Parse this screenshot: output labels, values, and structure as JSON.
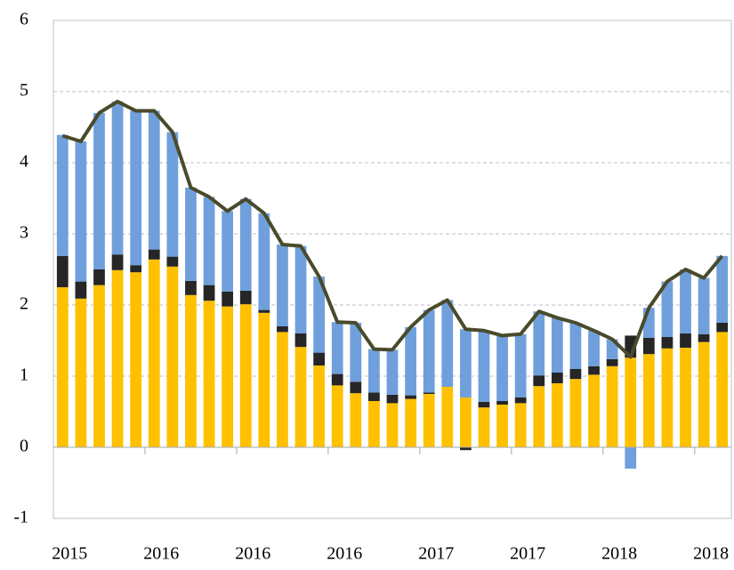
{
  "chart_data": {
    "type": "stacked_bar_line",
    "categories": [
      "2015",
      null,
      null,
      null,
      null,
      "2016",
      null,
      null,
      null,
      null,
      "2016",
      null,
      null,
      null,
      null,
      "2016",
      null,
      null,
      null,
      null,
      "2017",
      null,
      null,
      null,
      null,
      "2017",
      null,
      null,
      null,
      null,
      "2018",
      null,
      null,
      null,
      null,
      "2018",
      null
    ],
    "x_labels": [
      "2015",
      "2016",
      "2016",
      "2017",
      "2017",
      "2018",
      "2018",
      "2018"
    ],
    "series": [
      {
        "color": "#ffc000",
        "values": [
          2.25,
          2.09,
          2.28,
          2.49,
          2.46,
          2.64,
          2.54,
          2.14,
          2.06,
          1.98,
          2.01,
          1.89,
          1.62,
          1.41,
          1.15,
          0.87,
          0.76,
          0.65,
          0.62,
          0.68,
          0.75,
          0.85,
          0.7,
          0.56,
          0.6,
          0.62,
          0.86,
          0.9,
          0.96,
          1.02,
          1.14,
          1.26,
          1.31,
          1.39,
          1.4,
          1.48,
          1.62
        ]
      },
      {
        "color": "#262626",
        "values": [
          0.44,
          0.24,
          0.22,
          0.22,
          0.1,
          0.14,
          0.14,
          0.2,
          0.22,
          0.21,
          0.19,
          0.04,
          0.08,
          0.19,
          0.18,
          0.16,
          0.16,
          0.12,
          0.12,
          0.05,
          0.02,
          0,
          -0.04,
          0.08,
          0.05,
          0.08,
          0.15,
          0.15,
          0.14,
          0.12,
          0.1,
          0.31,
          0.23,
          0.16,
          0.2,
          0.11,
          0.13
        ]
      },
      {
        "color": "#6fa0dc",
        "values": [
          1.7,
          1.97,
          2.2,
          2.15,
          2.17,
          1.95,
          1.75,
          1.31,
          1.24,
          1.13,
          1.29,
          1.36,
          1.15,
          1.23,
          1.07,
          0.73,
          0.83,
          0.61,
          0.63,
          0.96,
          1.16,
          1.22,
          0.96,
          1.0,
          0.92,
          0.89,
          0.9,
          0.77,
          0.65,
          0.5,
          0.28,
          -0.3,
          0.42,
          0.78,
          0.9,
          0.79,
          0.94
        ]
      }
    ],
    "line": {
      "color": "#4a4a2c",
      "values": [
        4.38,
        4.3,
        4.7,
        4.86,
        4.73,
        4.73,
        4.43,
        3.65,
        3.52,
        3.32,
        3.49,
        3.29,
        2.85,
        2.83,
        2.4,
        1.76,
        1.75,
        1.38,
        1.37,
        1.69,
        1.93,
        2.07,
        1.66,
        1.64,
        1.57,
        1.59,
        1.91,
        1.82,
        1.75,
        1.64,
        1.52,
        1.27,
        1.96,
        2.33,
        2.5,
        2.38,
        2.69
      ]
    },
    "ylim": [
      -1,
      6
    ],
    "yticks": [
      -1,
      0,
      1,
      2,
      3,
      4,
      5,
      6
    ],
    "grid": true
  }
}
